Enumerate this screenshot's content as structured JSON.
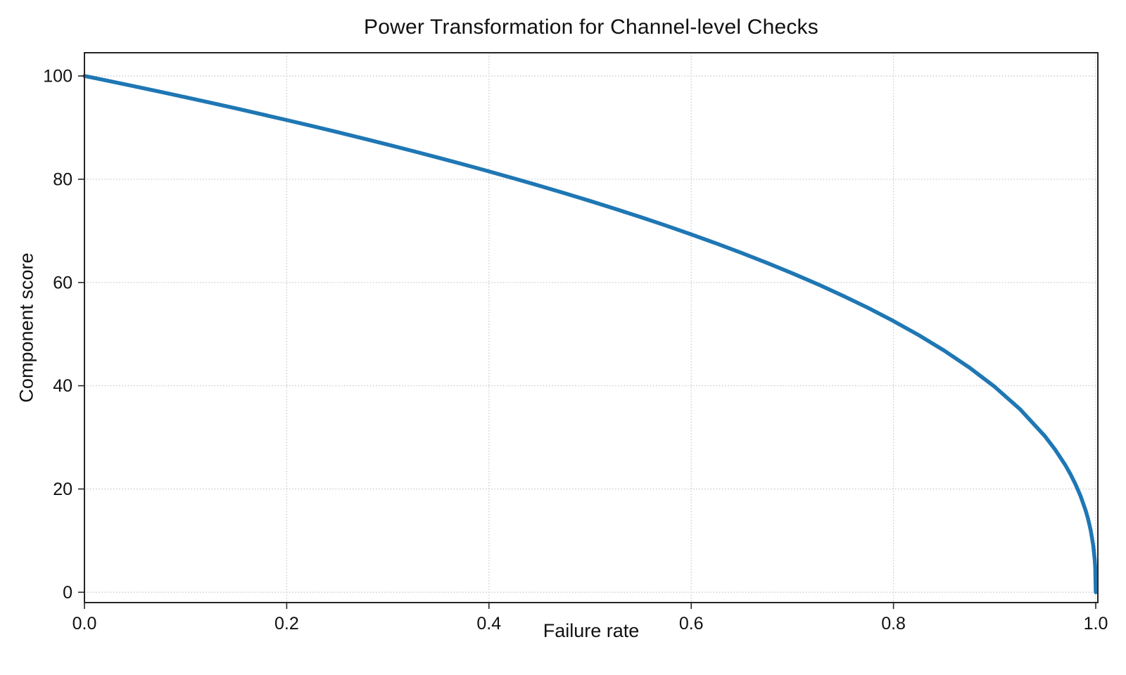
{
  "chart_data": {
    "type": "line",
    "title": "Power Transformation for Channel-level Checks",
    "xlabel": "Failure rate",
    "ylabel": "Component score",
    "xlim": [
      0.0,
      1.0
    ],
    "ylim": [
      -2.0,
      104.5
    ],
    "x_ticks": {
      "values": [
        0.0,
        0.2,
        0.4,
        0.6,
        0.8,
        1.0
      ],
      "labels": [
        "0.0",
        "0.2",
        "0.4",
        "0.6",
        "0.8",
        "1.0"
      ]
    },
    "y_ticks": {
      "values": [
        0,
        20,
        40,
        60,
        80,
        100
      ],
      "labels": [
        "0",
        "20",
        "40",
        "60",
        "80",
        "100"
      ]
    },
    "grid": {
      "visible": true,
      "style": "dotted",
      "color": "#c9c9c9"
    },
    "legend": {
      "visible": false
    },
    "colors": {
      "line": "#1f77b4",
      "spine": "#262626",
      "text": "#111111",
      "background": "#ffffff"
    },
    "series": [
      {
        "name": "Component score",
        "color": "#1f77b4",
        "line_width": 5.5,
        "function": "y = 100 * (1 - x)^0.4",
        "x": [
          0.0,
          0.025,
          0.05,
          0.075,
          0.1,
          0.125,
          0.15,
          0.175,
          0.2,
          0.225,
          0.25,
          0.275,
          0.3,
          0.325,
          0.35,
          0.375,
          0.4,
          0.425,
          0.45,
          0.475,
          0.5,
          0.525,
          0.55,
          0.575,
          0.6,
          0.625,
          0.65,
          0.675,
          0.7,
          0.725,
          0.75,
          0.775,
          0.8,
          0.825,
          0.85,
          0.875,
          0.9,
          0.925,
          0.95,
          0.96,
          0.97,
          0.975,
          0.98,
          0.985,
          0.99,
          0.9925,
          0.995,
          0.9975,
          0.999,
          0.9995,
          1.0
        ],
        "y": [
          100.0,
          98.99,
          97.97,
          96.93,
          95.87,
          94.8,
          93.71,
          92.59,
          91.46,
          90.31,
          89.13,
          87.93,
          86.7,
          85.45,
          84.17,
          82.86,
          81.52,
          80.14,
          78.73,
          77.28,
          75.79,
          74.25,
          72.66,
          71.02,
          69.31,
          67.55,
          65.71,
          63.79,
          61.78,
          59.67,
          57.43,
          55.07,
          52.53,
          49.8,
          46.82,
          43.53,
          39.81,
          35.48,
          30.17,
          27.59,
          24.6,
          22.87,
          20.91,
          18.64,
          15.85,
          14.13,
          12.01,
          9.11,
          6.31,
          4.78,
          0.0
        ]
      }
    ]
  }
}
